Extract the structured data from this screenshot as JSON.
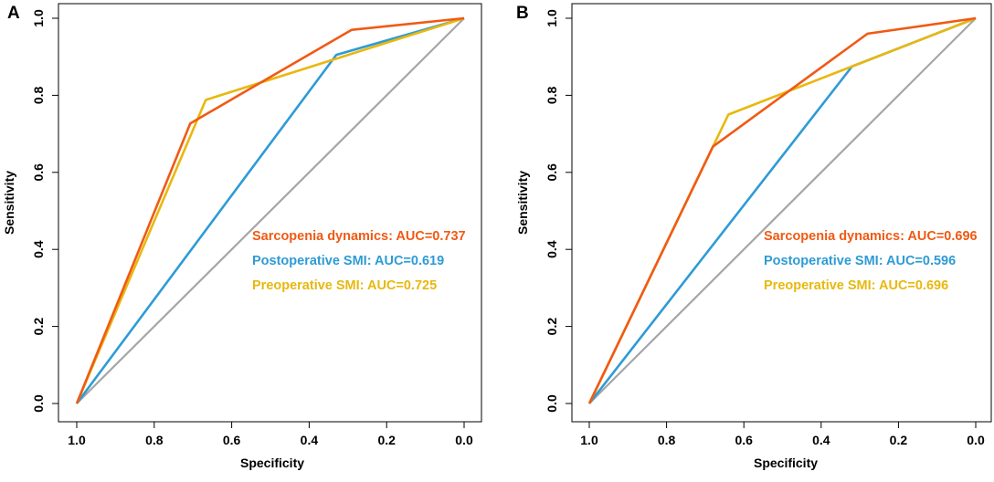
{
  "chart_data": [
    {
      "type": "line",
      "panel": "A",
      "xlabel": "Specificity",
      "ylabel": "Sensitivity",
      "xlim": [
        1.0,
        0.0
      ],
      "ylim": [
        0.0,
        1.0
      ],
      "x_ticks": [
        "1.0",
        "0.8",
        "0.6",
        "0.4",
        "0.2",
        "0.0"
      ],
      "y_ticks": [
        "0.0",
        "0.2",
        "0.4",
        "0.6",
        "0.8",
        "1.0"
      ],
      "legend_position": "right-middle",
      "reference_line": {
        "name": "Reference",
        "color": "#a6a6a6",
        "x": [
          1.0,
          0.0
        ],
        "y": [
          0.0,
          1.0
        ]
      },
      "series": [
        {
          "name": "Sarcopenia dynamics",
          "label": "Sarcopenia dynamics: AUC=0.737",
          "color": "#f05a14",
          "x": [
            1.0,
            0.707,
            0.29,
            0.0
          ],
          "y": [
            0.0,
            0.727,
            0.97,
            1.0
          ]
        },
        {
          "name": "Postoperative SMI",
          "label": "Postoperative SMI: AUC=0.619",
          "color": "#2e9bd6",
          "x": [
            1.0,
            0.33,
            0.0
          ],
          "y": [
            0.0,
            0.905,
            1.0
          ]
        },
        {
          "name": "Preoperative SMI",
          "label": "Preoperative SMI: AUC=0.725",
          "color": "#e8b80e",
          "x": [
            1.0,
            0.667,
            0.0
          ],
          "y": [
            0.0,
            0.788,
            1.0
          ]
        }
      ]
    },
    {
      "type": "line",
      "panel": "B",
      "xlabel": "Specificity",
      "ylabel": "Sensitivity",
      "xlim": [
        1.0,
        0.0
      ],
      "ylim": [
        0.0,
        1.0
      ],
      "x_ticks": [
        "1.0",
        "0.8",
        "0.6",
        "0.4",
        "0.2",
        "0.0"
      ],
      "y_ticks": [
        "0.0",
        "0.2",
        "0.4",
        "0.6",
        "0.8",
        "1.0"
      ],
      "legend_position": "right-middle",
      "reference_line": {
        "name": "Reference",
        "color": "#a6a6a6",
        "x": [
          1.0,
          0.0
        ],
        "y": [
          0.0,
          1.0
        ]
      },
      "series": [
        {
          "name": "Sarcopenia dynamics",
          "label": "Sarcopenia dynamics: AUC=0.696",
          "color": "#f05a14",
          "x": [
            1.0,
            0.68,
            0.28,
            0.0
          ],
          "y": [
            0.0,
            0.667,
            0.96,
            1.0
          ]
        },
        {
          "name": "Postoperative SMI",
          "label": "Postoperative SMI: AUC=0.596",
          "color": "#2e9bd6",
          "x": [
            1.0,
            0.32,
            0.0
          ],
          "y": [
            0.0,
            0.875,
            1.0
          ]
        },
        {
          "name": "Preoperative SMI",
          "label": "Preoperative SMI: AUC=0.696",
          "color": "#e8b80e",
          "x": [
            1.0,
            0.68,
            0.64,
            0.32,
            0.0
          ],
          "y": [
            0.0,
            0.667,
            0.75,
            0.875,
            1.0
          ]
        }
      ]
    }
  ]
}
